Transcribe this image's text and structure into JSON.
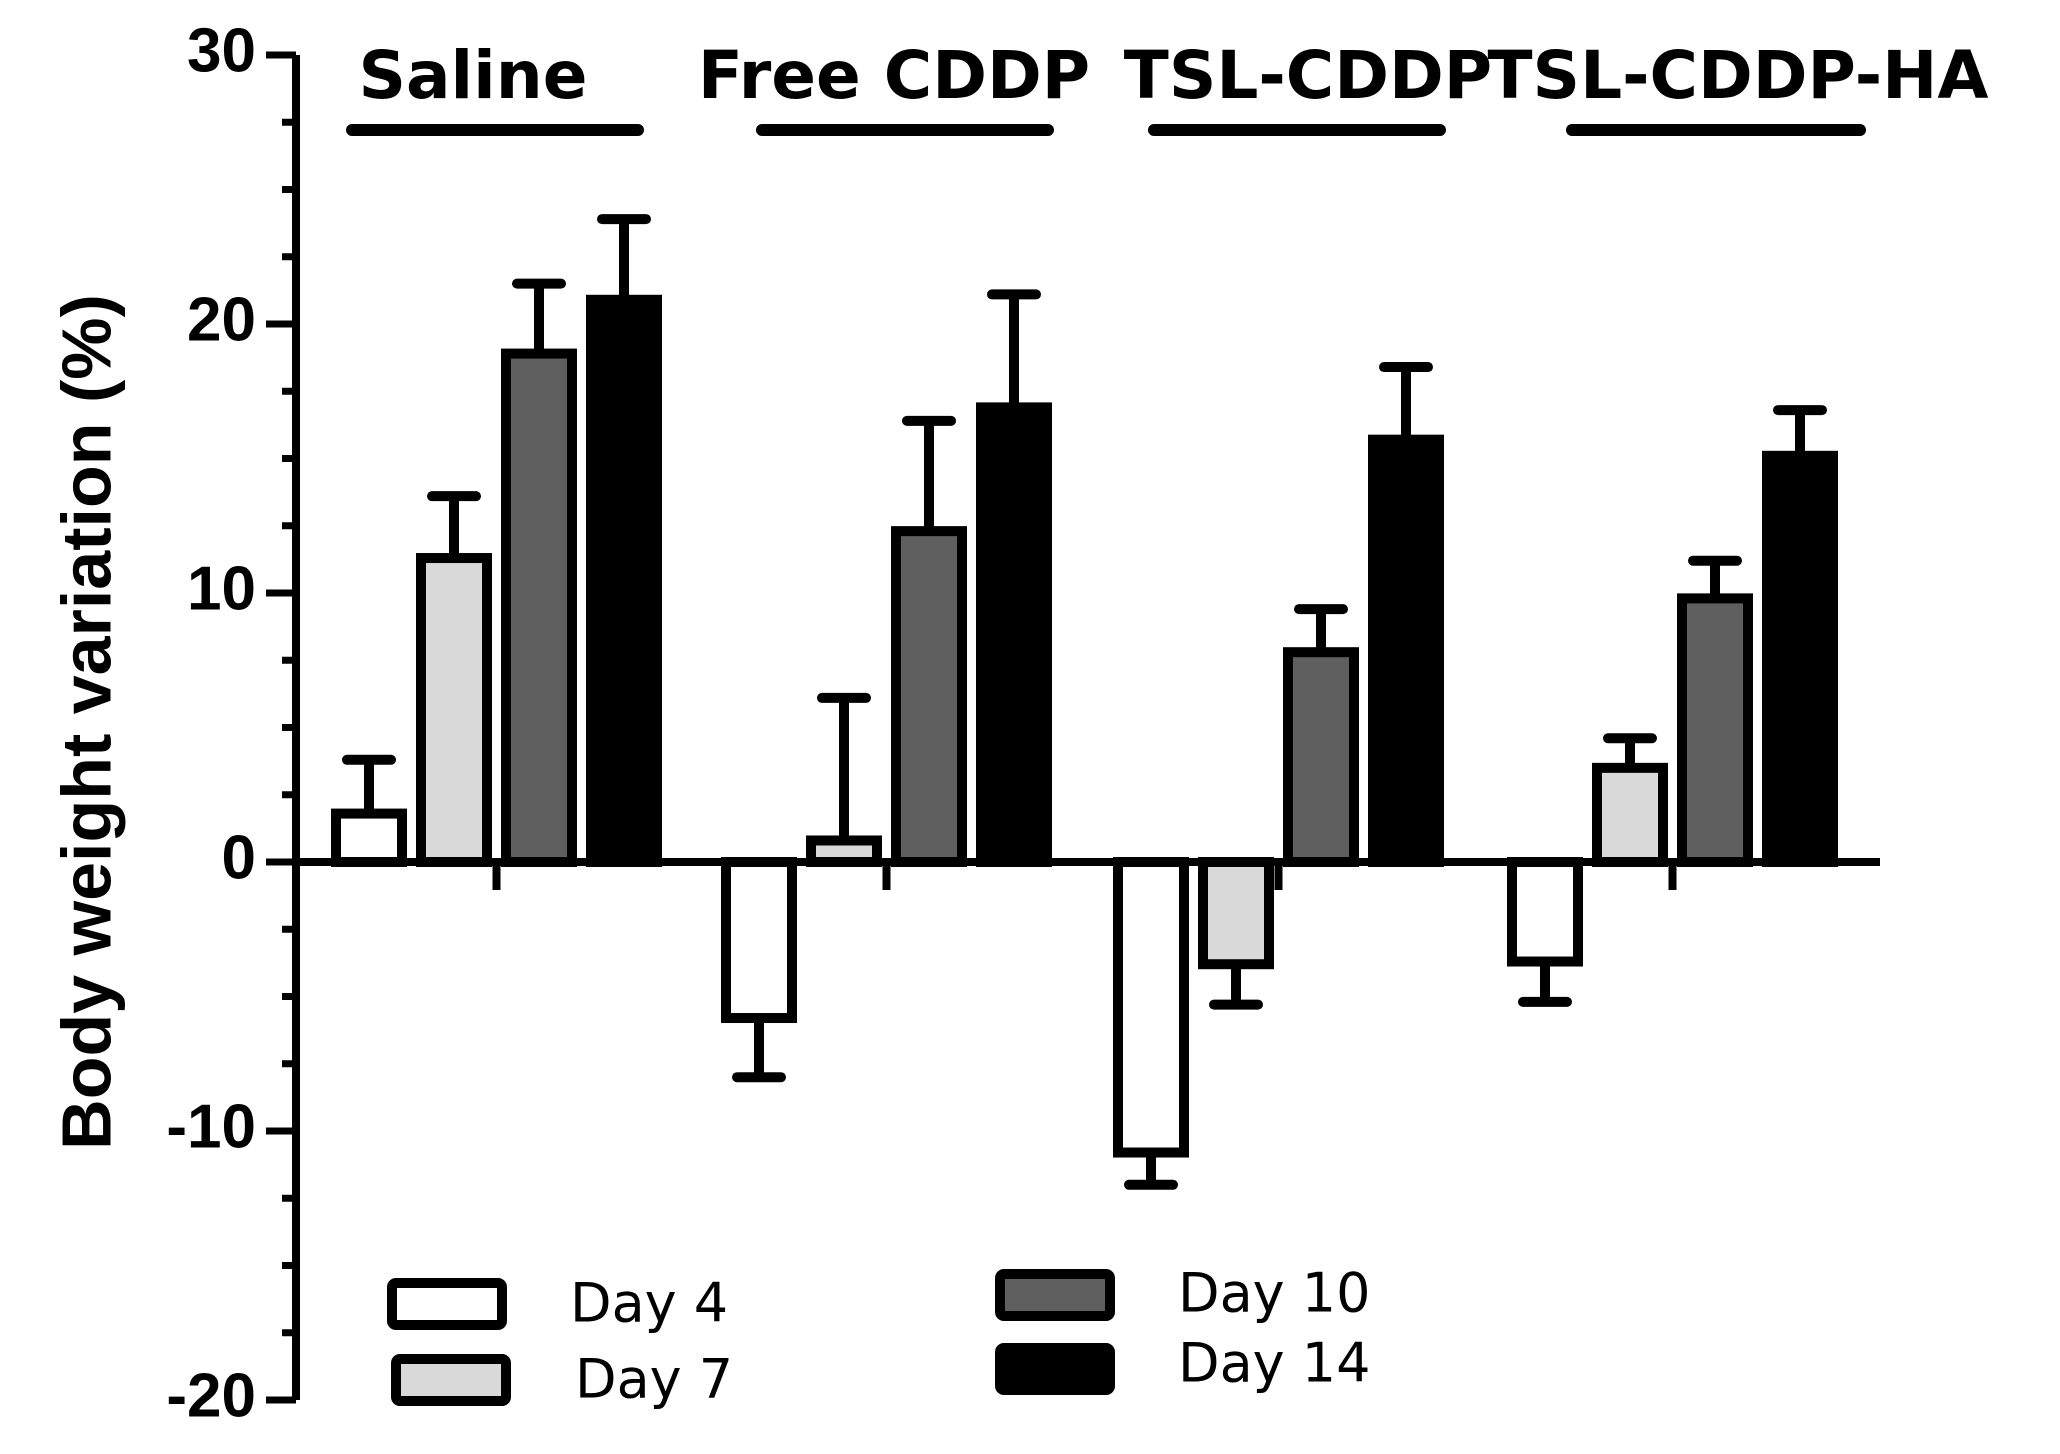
{
  "chart_data": {
    "type": "bar",
    "ylabel": "Body weight variation (%)",
    "ylim": [
      -20,
      30
    ],
    "yticks": [
      -20,
      -10,
      0,
      10,
      20,
      30
    ],
    "categories": [
      "Saline",
      "Free CDDP",
      "TSL-CDDP",
      "TSL-CDDP-HA"
    ],
    "series": [
      {
        "name": "Day 4",
        "color": "#ffffff",
        "values": [
          1.8,
          -5.8,
          -10.8,
          -3.7
        ],
        "errors": [
          2.0,
          2.2,
          1.2,
          1.5
        ]
      },
      {
        "name": "Day 7",
        "color": "#d9d9d9",
        "values": [
          11.3,
          0.8,
          -3.8,
          3.5
        ],
        "errors": [
          2.3,
          5.3,
          1.5,
          1.1
        ]
      },
      {
        "name": "Day 10",
        "color": "#5f5f5f",
        "values": [
          18.9,
          12.3,
          7.8,
          9.8
        ],
        "errors": [
          2.6,
          4.1,
          1.6,
          1.4
        ]
      },
      {
        "name": "Day 14",
        "color": "#000000",
        "values": [
          20.9,
          16.9,
          15.7,
          15.1
        ],
        "errors": [
          3.0,
          4.2,
          2.7,
          1.7
        ]
      }
    ],
    "legend_position": "bottom-left"
  }
}
